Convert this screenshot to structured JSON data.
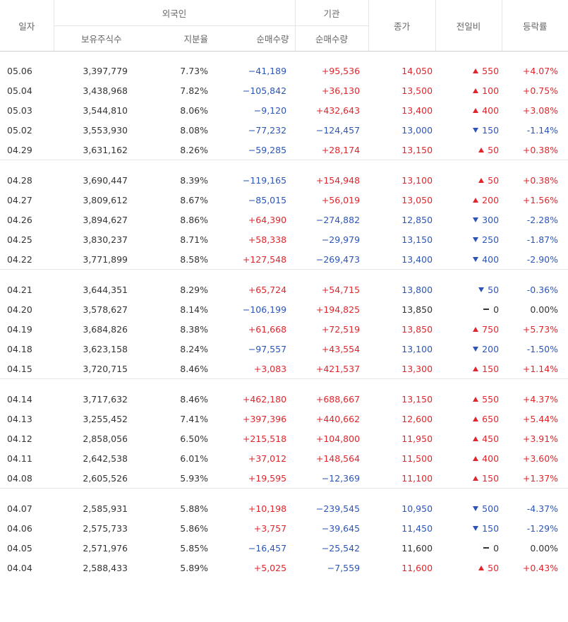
{
  "headers": {
    "date": "일자",
    "foreign": "외국인",
    "foreign_holdings": "보유주식수",
    "foreign_ratio": "지분율",
    "foreign_net": "순매수량",
    "institution": "기관",
    "institution_net": "순매수량",
    "close": "종가",
    "change": "전일비",
    "change_rate": "등락률"
  },
  "groups": [
    [
      {
        "date": "05.06",
        "holdings": "3,397,779",
        "ratio": "7.73%",
        "foreign_net": "−41,189",
        "inst_net": "+95,536",
        "close": "14,050",
        "dir": "up",
        "change": "550",
        "rate": "+4.07%"
      },
      {
        "date": "05.04",
        "holdings": "3,438,968",
        "ratio": "7.82%",
        "foreign_net": "−105,842",
        "inst_net": "+36,130",
        "close": "13,500",
        "dir": "up",
        "change": "100",
        "rate": "+0.75%"
      },
      {
        "date": "05.03",
        "holdings": "3,544,810",
        "ratio": "8.06%",
        "foreign_net": "−9,120",
        "inst_net": "+432,643",
        "close": "13,400",
        "dir": "up",
        "change": "400",
        "rate": "+3.08%"
      },
      {
        "date": "05.02",
        "holdings": "3,553,930",
        "ratio": "8.08%",
        "foreign_net": "−77,232",
        "inst_net": "−124,457",
        "close": "13,000",
        "dir": "down",
        "change": "150",
        "rate": "-1.14%"
      },
      {
        "date": "04.29",
        "holdings": "3,631,162",
        "ratio": "8.26%",
        "foreign_net": "−59,285",
        "inst_net": "+28,174",
        "close": "13,150",
        "dir": "up",
        "change": "50",
        "rate": "+0.38%"
      }
    ],
    [
      {
        "date": "04.28",
        "holdings": "3,690,447",
        "ratio": "8.39%",
        "foreign_net": "−119,165",
        "inst_net": "+154,948",
        "close": "13,100",
        "dir": "up",
        "change": "50",
        "rate": "+0.38%"
      },
      {
        "date": "04.27",
        "holdings": "3,809,612",
        "ratio": "8.67%",
        "foreign_net": "−85,015",
        "inst_net": "+56,019",
        "close": "13,050",
        "dir": "up",
        "change": "200",
        "rate": "+1.56%"
      },
      {
        "date": "04.26",
        "holdings": "3,894,627",
        "ratio": "8.86%",
        "foreign_net": "+64,390",
        "inst_net": "−274,882",
        "close": "12,850",
        "dir": "down",
        "change": "300",
        "rate": "-2.28%"
      },
      {
        "date": "04.25",
        "holdings": "3,830,237",
        "ratio": "8.71%",
        "foreign_net": "+58,338",
        "inst_net": "−29,979",
        "close": "13,150",
        "dir": "down",
        "change": "250",
        "rate": "-1.87%"
      },
      {
        "date": "04.22",
        "holdings": "3,771,899",
        "ratio": "8.58%",
        "foreign_net": "+127,548",
        "inst_net": "−269,473",
        "close": "13,400",
        "dir": "down",
        "change": "400",
        "rate": "-2.90%"
      }
    ],
    [
      {
        "date": "04.21",
        "holdings": "3,644,351",
        "ratio": "8.29%",
        "foreign_net": "+65,724",
        "inst_net": "+54,715",
        "close": "13,800",
        "dir": "down",
        "change": "50",
        "rate": "-0.36%"
      },
      {
        "date": "04.20",
        "holdings": "3,578,627",
        "ratio": "8.14%",
        "foreign_net": "−106,199",
        "inst_net": "+194,825",
        "close": "13,850",
        "dir": "flat",
        "change": "0",
        "rate": "0.00%"
      },
      {
        "date": "04.19",
        "holdings": "3,684,826",
        "ratio": "8.38%",
        "foreign_net": "+61,668",
        "inst_net": "+72,519",
        "close": "13,850",
        "dir": "up",
        "change": "750",
        "rate": "+5.73%"
      },
      {
        "date": "04.18",
        "holdings": "3,623,158",
        "ratio": "8.24%",
        "foreign_net": "−97,557",
        "inst_net": "+43,554",
        "close": "13,100",
        "dir": "down",
        "change": "200",
        "rate": "-1.50%"
      },
      {
        "date": "04.15",
        "holdings": "3,720,715",
        "ratio": "8.46%",
        "foreign_net": "+3,083",
        "inst_net": "+421,537",
        "close": "13,300",
        "dir": "up",
        "change": "150",
        "rate": "+1.14%"
      }
    ],
    [
      {
        "date": "04.14",
        "holdings": "3,717,632",
        "ratio": "8.46%",
        "foreign_net": "+462,180",
        "inst_net": "+688,667",
        "close": "13,150",
        "dir": "up",
        "change": "550",
        "rate": "+4.37%"
      },
      {
        "date": "04.13",
        "holdings": "3,255,452",
        "ratio": "7.41%",
        "foreign_net": "+397,396",
        "inst_net": "+440,662",
        "close": "12,600",
        "dir": "up",
        "change": "650",
        "rate": "+5.44%"
      },
      {
        "date": "04.12",
        "holdings": "2,858,056",
        "ratio": "6.50%",
        "foreign_net": "+215,518",
        "inst_net": "+104,800",
        "close": "11,950",
        "dir": "up",
        "change": "450",
        "rate": "+3.91%"
      },
      {
        "date": "04.11",
        "holdings": "2,642,538",
        "ratio": "6.01%",
        "foreign_net": "+37,012",
        "inst_net": "+148,564",
        "close": "11,500",
        "dir": "up",
        "change": "400",
        "rate": "+3.60%"
      },
      {
        "date": "04.08",
        "holdings": "2,605,526",
        "ratio": "5.93%",
        "foreign_net": "+19,595",
        "inst_net": "−12,369",
        "close": "11,100",
        "dir": "up",
        "change": "150",
        "rate": "+1.37%"
      }
    ],
    [
      {
        "date": "04.07",
        "holdings": "2,585,931",
        "ratio": "5.88%",
        "foreign_net": "+10,198",
        "inst_net": "−239,545",
        "close": "10,950",
        "dir": "down",
        "change": "500",
        "rate": "-4.37%"
      },
      {
        "date": "04.06",
        "holdings": "2,575,733",
        "ratio": "5.86%",
        "foreign_net": "+3,757",
        "inst_net": "−39,645",
        "close": "11,450",
        "dir": "down",
        "change": "150",
        "rate": "-1.29%"
      },
      {
        "date": "04.05",
        "holdings": "2,571,976",
        "ratio": "5.85%",
        "foreign_net": "−16,457",
        "inst_net": "−25,542",
        "close": "11,600",
        "dir": "flat",
        "change": "0",
        "rate": "0.00%"
      },
      {
        "date": "04.04",
        "holdings": "2,588,433",
        "ratio": "5.89%",
        "foreign_net": "+5,025",
        "inst_net": "−7,559",
        "close": "11,600",
        "dir": "up",
        "change": "50",
        "rate": "+0.43%"
      }
    ]
  ],
  "colors": {
    "up": "#e0262c",
    "down": "#2d55b8",
    "flat": "#333333",
    "header_text": "#666666"
  },
  "icons": {
    "up": "triangle-up-icon",
    "down": "triangle-down-icon",
    "flat": "dash-icon"
  }
}
